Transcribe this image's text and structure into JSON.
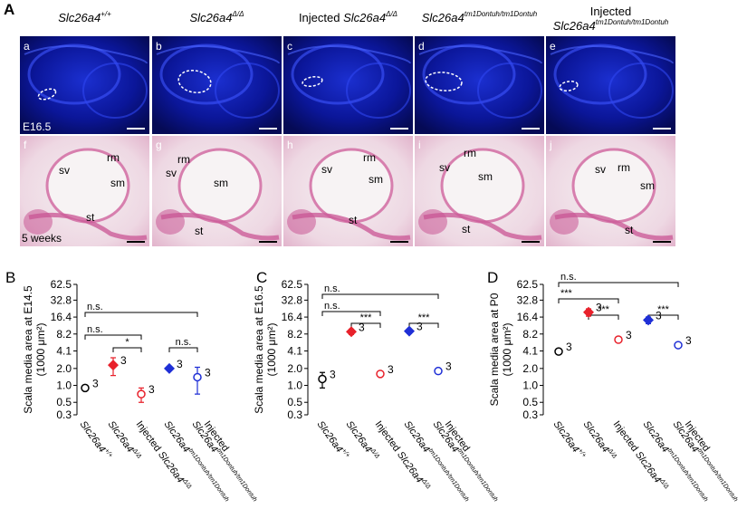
{
  "panel_a": {
    "letter": "A",
    "columns": [
      {
        "prefix": null,
        "gene": "Slc26a4",
        "sup": "+/+",
        "top_letter": "a",
        "bottom_letter": "f",
        "top_labels": [
          "E16.5"
        ],
        "bottom_labels": [
          "sv",
          "rm",
          "sm",
          "st",
          "5 weeks"
        ]
      },
      {
        "prefix": null,
        "gene": "Slc26a4",
        "sup": "Δ/Δ",
        "top_letter": "b",
        "bottom_letter": "g",
        "top_labels": [],
        "bottom_labels": [
          "rm",
          "sv",
          "sm",
          "st"
        ]
      },
      {
        "prefix": "Injected",
        "gene": "Slc26a4",
        "sup": "Δ/Δ",
        "top_letter": "c",
        "bottom_letter": "h",
        "top_labels": [],
        "bottom_labels": [
          "sv",
          "rm",
          "sm",
          "st"
        ]
      },
      {
        "prefix": null,
        "gene": "Slc26a4",
        "sup": "tm1Dontuh/tm1Dontuh",
        "top_letter": "d",
        "bottom_letter": "i",
        "top_labels": [],
        "bottom_labels": [
          "rm",
          "sv",
          "sm",
          "st"
        ]
      },
      {
        "prefix": "Injected",
        "gene": "Slc26a4",
        "sup": "tm1Dontuh/tm1Dontuh",
        "top_letter": "e",
        "bottom_letter": "j",
        "top_labels": [],
        "bottom_labels": [
          "sv",
          "rm",
          "sm",
          "st"
        ]
      }
    ]
  },
  "chart_data": [
    {
      "type": "scatter",
      "letter": "B",
      "y_label": "Scala media area at E14.5",
      "y_unit": "(1000 μm²)",
      "category_prefixes": [
        null,
        null,
        "Injected",
        null,
        "Injected"
      ],
      "categories": [
        "Slc26a4",
        "Slc26a4",
        "Slc26a4",
        "Slc26a4",
        "Slc26a4"
      ],
      "category_superscripts": [
        "+/+",
        "Δ/Δ",
        "Δ/Δ",
        "tm1Dontuh/tm1Dontuh",
        "tm1Dontuh/tm1Dontuh"
      ],
      "values": [
        0.9,
        2.3,
        0.7,
        2.0,
        1.4
      ],
      "errors": [
        0.1,
        0.8,
        0.2,
        0.1,
        0.7
      ],
      "colors": [
        "#000000",
        "#e8212b",
        "#e8212b",
        "#1f2fd6",
        "#1f2fd6"
      ],
      "markers": [
        "circle",
        "diamond",
        "circle",
        "diamond",
        "circle"
      ],
      "n_labels": [
        "3",
        "3",
        "3",
        "3",
        "3"
      ],
      "log_scale": true,
      "ylim": [
        0.3,
        62.5
      ],
      "yticks": [
        0.3,
        0.5,
        {
          "value": 1,
          "label": "1.0"
        },
        {
          "value": 2,
          "label": "2.0"
        },
        4.1,
        8.2,
        16.4,
        32.8,
        62.5
      ],
      "comparisons": [
        {
          "from": 0,
          "to": 4,
          "label": "n.s."
        },
        {
          "from": 0,
          "to": 2,
          "label": "n.s."
        },
        {
          "from": 1,
          "to": 2,
          "label": "*"
        },
        {
          "from": 3,
          "to": 4,
          "label": "n.s."
        }
      ]
    },
    {
      "type": "scatter",
      "letter": "C",
      "y_label": "Scala media area at E16.5",
      "y_unit": "(1000 μm²)",
      "category_prefixes": [
        null,
        null,
        "Injected",
        null,
        "Injected"
      ],
      "categories": [
        "Slc26a4",
        "Slc26a4",
        "Slc26a4",
        "Slc26a4",
        "Slc26a4"
      ],
      "category_superscripts": [
        "+/+",
        "Δ/Δ",
        "Δ/Δ",
        "tm1Dontuh/tm1Dontuh",
        "tm1Dontuh/tm1Dontuh"
      ],
      "values": [
        1.3,
        9.0,
        1.6,
        9.2,
        1.8
      ],
      "errors": [
        0.4,
        1.0,
        0.1,
        0.8,
        0.1
      ],
      "colors": [
        "#000000",
        "#e8212b",
        "#e8212b",
        "#1f2fd6",
        "#1f2fd6"
      ],
      "markers": [
        "circle",
        "diamond",
        "circle",
        "diamond",
        "circle"
      ],
      "n_labels": [
        "3",
        "3",
        "3",
        "3",
        "3"
      ],
      "log_scale": true,
      "ylim": [
        0.3,
        62.5
      ],
      "yticks": [
        0.3,
        0.5,
        {
          "value": 1,
          "label": "1.0"
        },
        {
          "value": 2,
          "label": "2.0"
        },
        4.1,
        8.2,
        16.4,
        32.8,
        62.5
      ],
      "comparisons": [
        {
          "from": 0,
          "to": 4,
          "label": "n.s."
        },
        {
          "from": 0,
          "to": 2,
          "label": "n.s."
        },
        {
          "from": 1,
          "to": 2,
          "label": "***"
        },
        {
          "from": 3,
          "to": 4,
          "label": "***"
        }
      ]
    },
    {
      "type": "scatter",
      "letter": "D",
      "y_label": "Scala media area at P0",
      "y_unit": "(1000 μm²)",
      "category_prefixes": [
        null,
        null,
        "Injected",
        null,
        "Injected"
      ],
      "categories": [
        "Slc26a4",
        "Slc26a4",
        "Slc26a4",
        "Slc26a4",
        "Slc26a4"
      ],
      "category_superscripts": [
        "+/+",
        "Δ/Δ",
        "Δ/Δ",
        "tm1Dontuh/tm1Dontuh",
        "tm1Dontuh/tm1Dontuh"
      ],
      "values": [
        4.0,
        20.0,
        6.5,
        14.5,
        5.2
      ],
      "errors": [
        0.3,
        3.0,
        0.6,
        2.0,
        0.4
      ],
      "colors": [
        "#000000",
        "#e8212b",
        "#e8212b",
        "#1f2fd6",
        "#1f2fd6"
      ],
      "markers": [
        "circle",
        "diamond",
        "circle",
        "diamond",
        "circle"
      ],
      "n_labels": [
        "3",
        "3",
        "3",
        "3",
        "3"
      ],
      "log_scale": true,
      "ylim": [
        0.3,
        62.5
      ],
      "yticks": [
        0.3,
        0.5,
        {
          "value": 1,
          "label": "1.0"
        },
        {
          "value": 2,
          "label": "2.0"
        },
        4.1,
        8.2,
        16.4,
        32.8,
        62.5
      ],
      "comparisons": [
        {
          "from": 0,
          "to": 4,
          "label": "n.s."
        },
        {
          "from": 0,
          "to": 2,
          "label": "***"
        },
        {
          "from": 1,
          "to": 2,
          "label": "***"
        },
        {
          "from": 3,
          "to": 4,
          "label": "***"
        }
      ]
    }
  ]
}
